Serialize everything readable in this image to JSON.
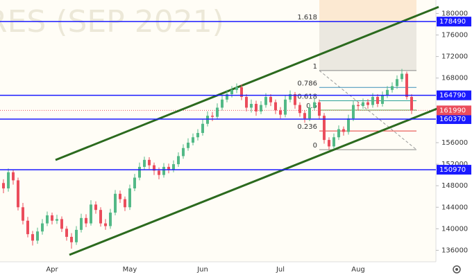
{
  "chart_data": {
    "type": "candlestick",
    "watermark": "RES (SEP 2021)",
    "categories": [
      null,
      null,
      null,
      null,
      null,
      null,
      null,
      null,
      null,
      null,
      "Apr",
      null,
      null,
      null,
      null,
      null,
      null,
      null,
      null,
      null,
      null,
      null,
      null,
      null,
      null,
      null,
      "May",
      null,
      null,
      null,
      null,
      null,
      null,
      null,
      null,
      null,
      null,
      null,
      null,
      null,
      null,
      "Jun",
      null,
      null,
      null,
      null,
      null,
      null,
      null,
      null,
      null,
      null,
      null,
      null,
      null,
      null,
      null,
      "Jul",
      null,
      null,
      null,
      null,
      null,
      null,
      null,
      null,
      null,
      null,
      null,
      null,
      null,
      null,
      null,
      "Aug",
      null,
      null,
      null,
      null,
      null,
      null,
      null,
      null,
      null,
      null,
      null
    ],
    "open": [
      148500,
      147500,
      150500,
      149000,
      144000,
      141500,
      139000,
      137800,
      139500,
      141000,
      142500,
      141500,
      141800,
      140000,
      138500,
      137500,
      139800,
      142000,
      141000,
      144500,
      143500,
      141000,
      140500,
      143000,
      146500,
      145500,
      144000,
      147500,
      149500,
      151500,
      152800,
      151800,
      150800,
      150000,
      151500,
      151000,
      152000,
      153500,
      155000,
      156000,
      157000,
      157800,
      159500,
      161000,
      160800,
      162500,
      164000,
      165000,
      165800,
      166300,
      164500,
      162500,
      163200,
      161800,
      163000,
      164500,
      163500,
      162000,
      161200,
      164000,
      165000,
      163000,
      161500,
      160500,
      162500,
      163500,
      161000,
      156500,
      155300,
      157000,
      158500,
      158000,
      160500,
      163000,
      162800,
      163500,
      163000,
      164500,
      163200,
      164800,
      165800,
      166500,
      167800,
      168800,
      164500
    ],
    "high": [
      149200,
      151200,
      151000,
      149500,
      144800,
      142200,
      139600,
      140200,
      141800,
      143200,
      143000,
      142600,
      142300,
      140500,
      139200,
      140500,
      142800,
      142700,
      145300,
      145100,
      144000,
      141800,
      143700,
      147200,
      147100,
      146000,
      148200,
      150200,
      152300,
      153400,
      153300,
      152300,
      151400,
      152200,
      152100,
      152700,
      154200,
      155700,
      156800,
      157700,
      158500,
      160300,
      161800,
      161700,
      163300,
      164700,
      165800,
      166500,
      167000,
      166800,
      165000,
      164000,
      163800,
      163700,
      165200,
      165000,
      164000,
      162600,
      164800,
      165700,
      165400,
      163500,
      162000,
      163200,
      164200,
      164000,
      161500,
      157000,
      157700,
      159200,
      159000,
      161200,
      163700,
      163600,
      164200,
      164100,
      165200,
      165000,
      165500,
      166500,
      167200,
      168500,
      169700,
      169200,
      165000
    ],
    "low": [
      146600,
      146900,
      148200,
      143400,
      140800,
      138400,
      136900,
      137200,
      138900,
      140500,
      140800,
      140900,
      139400,
      137800,
      136300,
      137000,
      139300,
      140300,
      140600,
      142800,
      140400,
      139800,
      140000,
      142500,
      144800,
      143300,
      143500,
      147000,
      149000,
      151000,
      151100,
      150000,
      149200,
      149500,
      150300,
      150500,
      151500,
      153000,
      154500,
      155500,
      156400,
      157300,
      159000,
      160000,
      160300,
      162000,
      163500,
      164400,
      165200,
      163900,
      161800,
      161600,
      161000,
      161300,
      162500,
      162800,
      161300,
      160500,
      160700,
      163500,
      162300,
      160800,
      159700,
      160000,
      162000,
      160300,
      155800,
      154700,
      154800,
      156500,
      157300,
      157500,
      160000,
      162000,
      162300,
      162300,
      162500,
      162600,
      162700,
      164300,
      165300,
      166000,
      167300,
      164000,
      161300
    ],
    "close": [
      147500,
      150500,
      149000,
      144000,
      141500,
      139000,
      137800,
      139500,
      141000,
      142500,
      141500,
      141800,
      140000,
      138500,
      137500,
      139800,
      142000,
      141000,
      144500,
      143500,
      141000,
      140500,
      143000,
      146500,
      145500,
      144000,
      147500,
      149500,
      151500,
      152800,
      151800,
      150800,
      150000,
      151500,
      151000,
      152000,
      153500,
      155000,
      156000,
      157000,
      157800,
      159500,
      161000,
      160800,
      162500,
      164000,
      165000,
      165800,
      166300,
      164500,
      162500,
      163200,
      161800,
      163000,
      164500,
      163500,
      162000,
      161200,
      164000,
      165000,
      163000,
      161500,
      160500,
      162500,
      163500,
      161000,
      156500,
      155300,
      157000,
      158500,
      158000,
      160500,
      163000,
      162800,
      163500,
      163000,
      164500,
      163200,
      164800,
      165800,
      166500,
      167800,
      168800,
      164500,
      161990
    ],
    "up_color": "#53b987",
    "down_color": "#eb4d5c",
    "ylim": [
      134000,
      182500
    ],
    "yticks": [
      136000,
      140000,
      144000,
      148000,
      152000,
      156000,
      168000,
      172000,
      176000,
      180000
    ],
    "levels": [
      178490,
      164790,
      160370,
      150970
    ],
    "level_color": "#1a1aff",
    "last_price": 161990,
    "last_color": "#eb4d5c",
    "fib": {
      "start": 154700,
      "end": 169400,
      "ratios": [
        1.618,
        1,
        0.786,
        0.618,
        0.5,
        0.236,
        0
      ],
      "colors": [
        "#2c3e9e",
        "#888888",
        "#3a8fb7",
        "#2aa198",
        "#4caf50",
        "#e53935",
        "#888888"
      ]
    }
  }
}
